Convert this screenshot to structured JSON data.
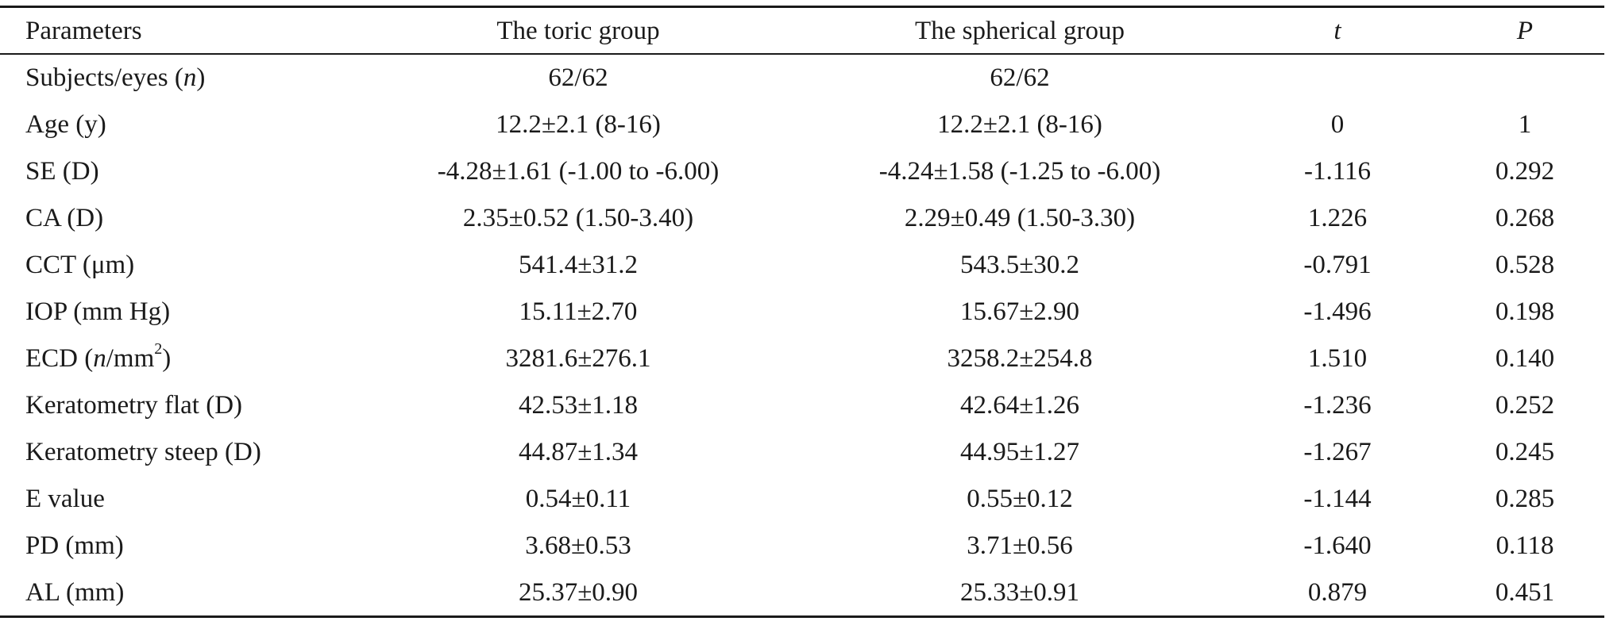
{
  "header": {
    "parameters": "Parameters",
    "toric": "The toric group",
    "spherical": "The spherical group",
    "t": "t",
    "p": "P"
  },
  "rows": [
    {
      "param_pre": "Subjects/eyes (",
      "param_ital": "n",
      "param_post": ")",
      "toric": "62/62",
      "spherical": "62/62",
      "t": "",
      "p": ""
    },
    {
      "param": "Age (y)",
      "toric": "12.2±2.1 (8-16)",
      "spherical": "12.2±2.1 (8-16)",
      "t": "0",
      "p": "1"
    },
    {
      "param": "SE (D)",
      "toric": "-4.28±1.61 (-1.00 to -6.00)",
      "spherical": "-4.24±1.58 (-1.25 to -6.00)",
      "t": "-1.116",
      "p": "0.292"
    },
    {
      "param": "CA (D)",
      "toric": "2.35±0.52 (1.50-3.40)",
      "spherical": "2.29±0.49 (1.50-3.30)",
      "t": "1.226",
      "p": "0.268"
    },
    {
      "param": "CCT (μm)",
      "toric": "541.4±31.2",
      "spherical": "543.5±30.2",
      "t": "-0.791",
      "p": "0.528"
    },
    {
      "param": "IOP (mm Hg)",
      "toric": "15.11±2.70",
      "spherical": "15.67±2.90",
      "t": "-1.496",
      "p": "0.198"
    },
    {
      "param_pre": "ECD (",
      "param_ital": "n",
      "param_mid": "/mm",
      "param_sup": "2",
      "param_post": ")",
      "toric": "3281.6±276.1",
      "spherical": "3258.2±254.8",
      "t": "1.510",
      "p": "0.140"
    },
    {
      "param": "Keratometry flat (D)",
      "toric": "42.53±1.18",
      "spherical": "42.64±1.26",
      "t": "-1.236",
      "p": "0.252"
    },
    {
      "param": "Keratometry steep (D)",
      "toric": "44.87±1.34",
      "spherical": "44.95±1.27",
      "t": "-1.267",
      "p": "0.245"
    },
    {
      "param": "E value",
      "toric": "0.54±0.11",
      "spherical": "0.55±0.12",
      "t": "-1.144",
      "p": "0.285"
    },
    {
      "param": "PD (mm)",
      "toric": "3.68±0.53",
      "spherical": "3.71±0.56",
      "t": "-1.640",
      "p": "0.118"
    },
    {
      "param": "AL (mm)",
      "toric": "25.37±0.90",
      "spherical": "25.33±0.91",
      "t": "0.879",
      "p": "0.451"
    }
  ]
}
